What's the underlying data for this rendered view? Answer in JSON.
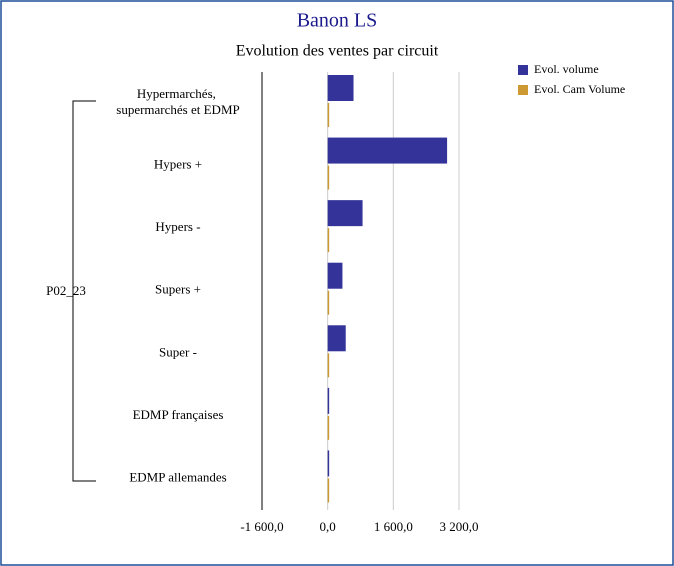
{
  "chart_data": {
    "type": "hbar",
    "title": "Banon LS",
    "subtitle": "Evolution des ventes par circuit",
    "group_label": "P02_23",
    "categories": [
      "Hypermarchés, supermarchés et EDMP",
      "Hypers +",
      "Hypers -",
      "Supers +",
      "Super -",
      "EDMP françaises",
      "EDMP allemandes"
    ],
    "series": [
      {
        "name": "Evol. volume",
        "color": "#333399",
        "values": [
          630,
          2910,
          850,
          360,
          440,
          20,
          20
        ]
      },
      {
        "name": "Evol. Cam Volume",
        "color": "#cc9933",
        "values": [
          5,
          10,
          5,
          15,
          5,
          5,
          5
        ]
      }
    ],
    "xlim": [
      -1600,
      3200
    ],
    "xticks": [
      {
        "value": -1600,
        "label": "-1 600,0"
      },
      {
        "value": 0,
        "label": "0,0"
      },
      {
        "value": 1600,
        "label": "1 600,0"
      },
      {
        "value": 3200,
        "label": "3 200,0"
      }
    ],
    "grid": true,
    "legend_position": "right"
  }
}
